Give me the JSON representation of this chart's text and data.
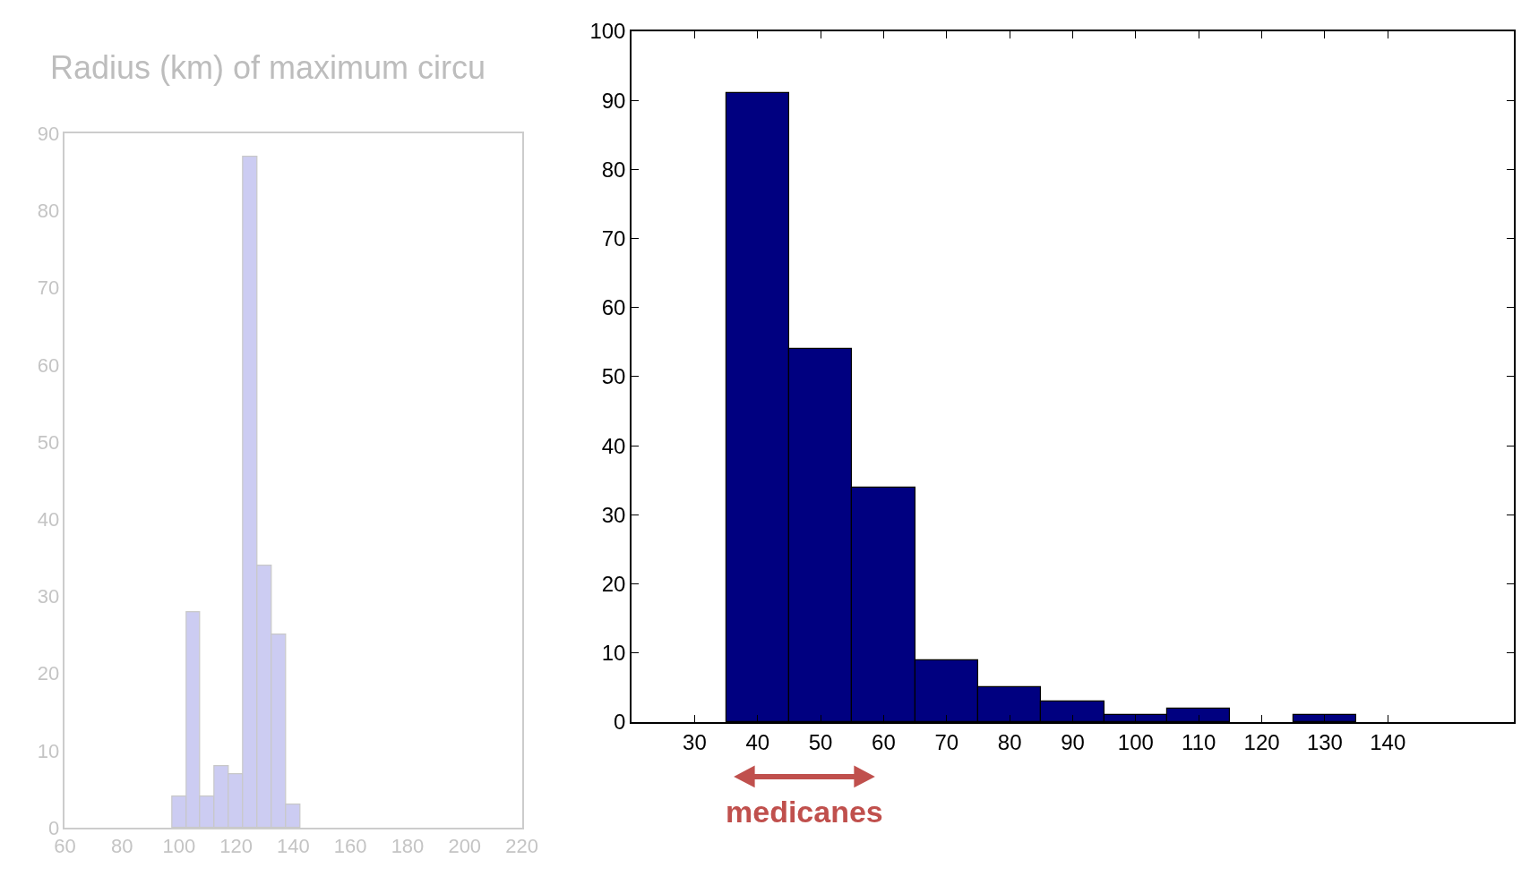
{
  "chart_data": [
    {
      "type": "histogram",
      "title": "Radius (km) of maximum circu",
      "bins": [
        97.5,
        102.5,
        107.5,
        112.5,
        117.5,
        122.5,
        127.5,
        132.5,
        137.5,
        142.5
      ],
      "values": [
        4,
        28,
        4,
        8,
        7,
        87,
        34,
        25,
        3
      ],
      "color": "#ccccf2",
      "xlim": [
        60,
        220
      ],
      "xticks": [
        60,
        80,
        100,
        120,
        140,
        160,
        180,
        200,
        220
      ],
      "ylim": [
        0,
        90
      ],
      "yticks": [
        0,
        10,
        20,
        30,
        40,
        50,
        60,
        70,
        80,
        90
      ]
    },
    {
      "type": "histogram",
      "bins": [
        35,
        45,
        55,
        65,
        75,
        85,
        95,
        105,
        115,
        125,
        135
      ],
      "values": [
        91,
        54,
        34,
        9,
        5,
        3,
        1,
        2,
        0,
        1
      ],
      "color": "#000080",
      "xlim": [
        20,
        160
      ],
      "xticks": [
        30,
        40,
        50,
        60,
        70,
        80,
        90,
        100,
        110,
        120,
        130,
        140
      ],
      "ylim": [
        0,
        100
      ],
      "yticks": [
        0,
        10,
        20,
        30,
        40,
        50,
        60,
        70,
        80,
        90,
        100
      ],
      "annotations": [
        "medicanes"
      ]
    }
  ]
}
